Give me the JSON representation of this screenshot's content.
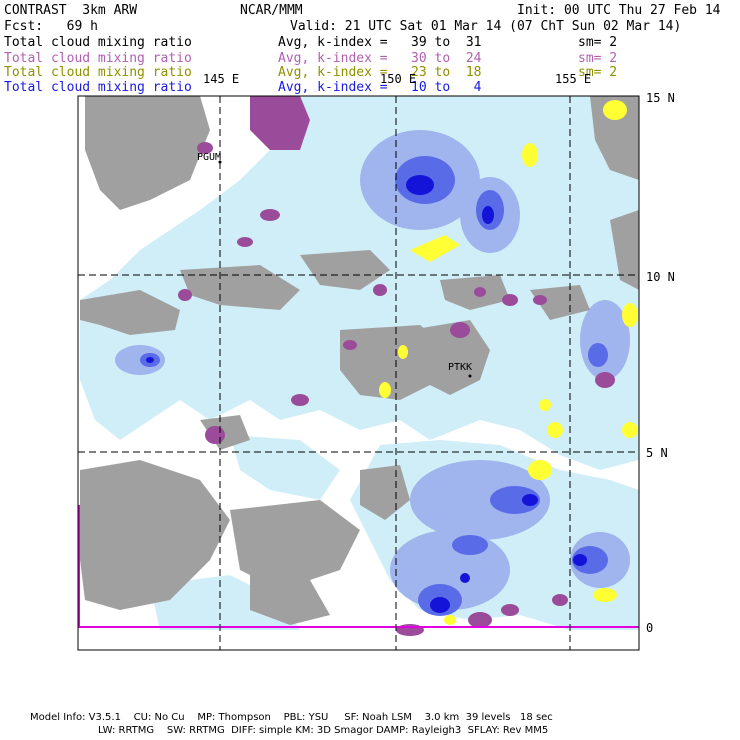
{
  "header": {
    "model": "CONTRAST  3km ARW",
    "org": "NCAR/MMM",
    "init": "Init: 00 UTC Thu 27 Feb 14",
    "fcst": "Fcst:   69 h",
    "valid": "Valid: 21 UTC Sat 01 Mar 14 (07 ChT Sun 02 Mar 14)"
  },
  "fields": [
    {
      "name": "Total cloud mixing ratio",
      "avg": "Avg, k-index =   39 to  31",
      "sm": "sm= 2",
      "color": "#000000"
    },
    {
      "name": "Total cloud mixing ratio",
      "avg": "Avg, k-index =   30 to  24",
      "sm": "sm= 2",
      "color": "#b060b0"
    },
    {
      "name": "Total cloud mixing ratio",
      "avg": "Avg, k-index =   23 to  18",
      "sm": "sm= 2",
      "color": "#909000"
    },
    {
      "name": "Total cloud mixing ratio",
      "avg": "Avg, k-index =   10 to   4",
      "sm": "",
      "color": "#1a1ae0"
    }
  ],
  "map": {
    "lon_labels": [
      "145 E",
      "150 E",
      "155 E"
    ],
    "lat_labels": [
      "15 N",
      "10 N",
      "5 N",
      "0"
    ],
    "stations": [
      "PGUM",
      "PTKK"
    ],
    "colors": {
      "gray_cloud": "#a0a0a0",
      "purple_cloud": "#9a4c9a",
      "yellow_cloud": "#ffff33",
      "light_blue": "#d0eef8",
      "mid_blue": "#a0b4ee",
      "blue": "#5a6be8",
      "dark_blue": "#1414d8",
      "boundary": "#e000e0"
    }
  },
  "footer": {
    "line1": "Model Info: V3.5.1    CU: No Cu    MP: Thompson    PBL: YSU     SF: Noah LSM    3.0 km  39 levels   18 sec",
    "line2": "LW: RRTMG    SW: RRTMG  DIFF: simple KM: 3D Smagor DAMP: Rayleigh3  SFLAY: Rev MM5"
  }
}
